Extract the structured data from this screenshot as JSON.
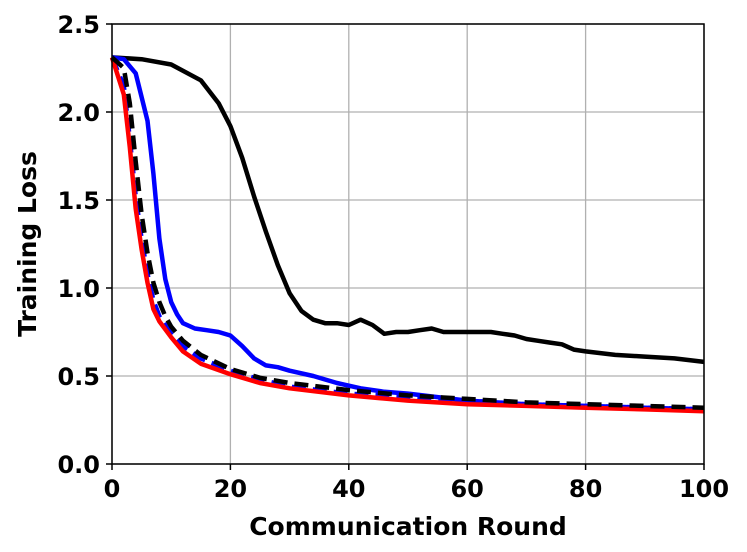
{
  "chart_data": {
    "type": "line",
    "title": "",
    "xlabel": "Communication Round",
    "ylabel": "Training Loss",
    "xlim": [
      0,
      100
    ],
    "ylim": [
      0,
      2.5
    ],
    "xticks": [
      "0",
      "20",
      "40",
      "60",
      "80",
      "100"
    ],
    "yticks": [
      "0.0",
      "0.5",
      "1.0",
      "1.5",
      "2.0",
      "2.5"
    ],
    "grid": true,
    "legend": "none",
    "series": [
      {
        "color": "#000000",
        "dash": "solid",
        "x": [
          0,
          5,
          10,
          15,
          18,
          20,
          22,
          24,
          26,
          28,
          30,
          32,
          34,
          36,
          38,
          40,
          42,
          44,
          46,
          48,
          50,
          52,
          54,
          56,
          60,
          64,
          66,
          68,
          70,
          72,
          74,
          76,
          78,
          80,
          85,
          90,
          95,
          100
        ],
        "y": [
          2.31,
          2.3,
          2.27,
          2.18,
          2.05,
          1.92,
          1.74,
          1.52,
          1.32,
          1.13,
          0.97,
          0.87,
          0.82,
          0.8,
          0.8,
          0.79,
          0.82,
          0.79,
          0.74,
          0.75,
          0.75,
          0.76,
          0.77,
          0.75,
          0.75,
          0.75,
          0.74,
          0.73,
          0.71,
          0.7,
          0.69,
          0.68,
          0.65,
          0.64,
          0.62,
          0.61,
          0.6,
          0.58
        ]
      },
      {
        "color": "#0000ff",
        "dash": "solid",
        "x": [
          0,
          2,
          4,
          6,
          7,
          8,
          9,
          10,
          11,
          12,
          14,
          16,
          18,
          20,
          22,
          24,
          26,
          28,
          30,
          34,
          38,
          42,
          46,
          50,
          55,
          60,
          70,
          80,
          90,
          100
        ],
        "y": [
          2.31,
          2.3,
          2.22,
          1.95,
          1.65,
          1.28,
          1.05,
          0.92,
          0.85,
          0.8,
          0.77,
          0.76,
          0.75,
          0.73,
          0.67,
          0.6,
          0.56,
          0.55,
          0.53,
          0.5,
          0.46,
          0.43,
          0.41,
          0.4,
          0.38,
          0.36,
          0.34,
          0.33,
          0.32,
          0.31
        ]
      },
      {
        "color": "#0000ff",
        "dash": "dashed",
        "x": [
          0,
          2,
          3,
          4,
          5,
          6,
          7,
          8,
          10,
          12,
          15,
          20,
          25,
          30,
          40,
          50,
          60,
          70,
          80,
          90,
          100
        ],
        "y": [
          2.31,
          2.15,
          1.85,
          1.52,
          1.28,
          1.08,
          0.93,
          0.84,
          0.74,
          0.67,
          0.6,
          0.53,
          0.48,
          0.44,
          0.4,
          0.38,
          0.36,
          0.34,
          0.33,
          0.32,
          0.31
        ]
      },
      {
        "color": "#ff0000",
        "dash": "solid",
        "x": [
          0,
          2,
          3,
          4,
          5,
          6,
          7,
          8,
          10,
          12,
          15,
          20,
          25,
          30,
          40,
          50,
          60,
          70,
          80,
          90,
          100
        ],
        "y": [
          2.31,
          2.1,
          1.8,
          1.45,
          1.22,
          1.03,
          0.88,
          0.81,
          0.72,
          0.64,
          0.57,
          0.51,
          0.46,
          0.43,
          0.39,
          0.36,
          0.34,
          0.33,
          0.32,
          0.31,
          0.3
        ]
      },
      {
        "color": "#000000",
        "dash": "dashed",
        "x": [
          0,
          2,
          3,
          4,
          5,
          6,
          7,
          8,
          9,
          10,
          12,
          15,
          20,
          25,
          30,
          40,
          50,
          60,
          70,
          80,
          90,
          100
        ],
        "y": [
          2.31,
          2.25,
          2.05,
          1.72,
          1.42,
          1.2,
          1.03,
          0.92,
          0.84,
          0.78,
          0.7,
          0.62,
          0.54,
          0.49,
          0.46,
          0.42,
          0.39,
          0.37,
          0.35,
          0.34,
          0.33,
          0.32
        ]
      }
    ]
  }
}
